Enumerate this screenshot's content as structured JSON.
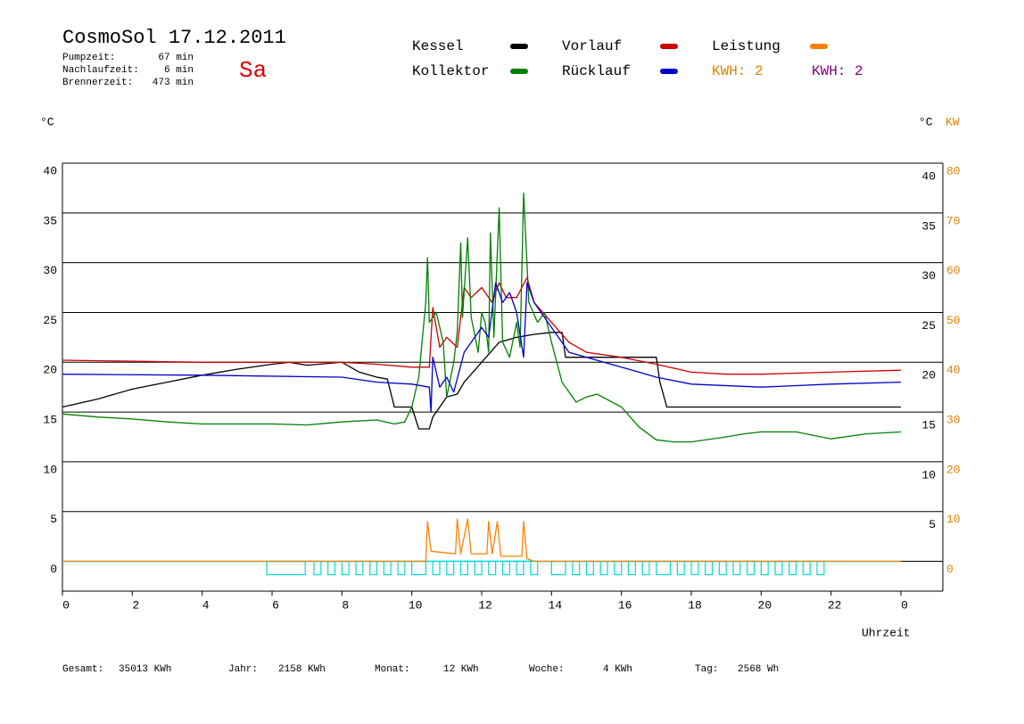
{
  "chart_data": {
    "type": "line",
    "title": "CosmoSol 17.12.2011",
    "day": "Sa",
    "info": [
      {
        "label": "Pumpzeit:",
        "value": "67 min"
      },
      {
        "label": "Nachlaufzeit:",
        "value": "6 min"
      },
      {
        "label": "Brennerzeit:",
        "value": "473 min"
      }
    ],
    "y_label": "°C",
    "y2_label_c": "°C",
    "y2_label": "KW",
    "x_label": "Uhrzeit",
    "xlim": [
      0,
      25.2
    ],
    "xticks": [
      0,
      2,
      4,
      6,
      8,
      10,
      12,
      14,
      16,
      18,
      20,
      22,
      {
        "value": 24,
        "label": "0"
      }
    ],
    "ylim": [
      -3,
      40
    ],
    "yticks": [
      0,
      5,
      10,
      15,
      20,
      25,
      30,
      35,
      40
    ],
    "y2lim": [
      -6,
      80
    ],
    "y2ticks": [
      0,
      10,
      20,
      30,
      40,
      50,
      60,
      70,
      80
    ],
    "grid": true,
    "series": [
      {
        "name": "Kessel",
        "color": "#000000",
        "x": [
          0,
          1,
          2,
          3,
          4,
          5,
          6,
          6.5,
          7,
          8,
          8.5,
          9,
          9.3,
          9.5,
          10,
          10.2,
          10.5,
          10.6,
          11,
          11.3,
          11.5,
          12,
          12.5,
          13,
          13.5,
          14,
          14.3,
          14.4,
          15,
          16,
          17,
          17.1,
          17.3,
          18,
          24
        ],
        "values": [
          15.5,
          16.3,
          17.3,
          18.0,
          18.7,
          19.3,
          19.8,
          20.0,
          19.7,
          20.0,
          19.0,
          18.5,
          18.3,
          15.5,
          15.5,
          13.3,
          13.3,
          14.5,
          16.5,
          16.8,
          18.0,
          20.0,
          22.0,
          22.5,
          22.8,
          23.0,
          23.0,
          20.5,
          20.5,
          20.5,
          20.5,
          18.0,
          15.5,
          15.5,
          15.5
        ]
      },
      {
        "name": "Vorlauf",
        "color": "#cc0000",
        "x": [
          0,
          4,
          8,
          9,
          10,
          10.5,
          10.6,
          10.8,
          11,
          11.3,
          11.5,
          11.7,
          12,
          12.3,
          12.5,
          12.7,
          13,
          13.3,
          13.5,
          14,
          14.5,
          15,
          16,
          17,
          18,
          19,
          20,
          22,
          24
        ],
        "values": [
          20.2,
          20.0,
          20.0,
          19.8,
          19.5,
          19.5,
          25.5,
          21.5,
          22.5,
          21.5,
          27.5,
          26.5,
          27.5,
          26.0,
          28.0,
          26.5,
          26.5,
          28.5,
          26.0,
          24.0,
          22.0,
          21.0,
          20.5,
          19.8,
          19.0,
          18.8,
          18.8,
          19.0,
          19.2
        ]
      },
      {
        "name": "Leistung",
        "color": "#ff8000",
        "axis": "y2",
        "x": [
          0,
          10.4,
          10.45,
          10.55,
          11.25,
          11.3,
          11.4,
          11.6,
          11.7,
          12.15,
          12.2,
          12.3,
          12.45,
          12.55,
          13.15,
          13.2,
          13.3,
          13.5,
          24
        ],
        "values": [
          0,
          0,
          8,
          2,
          1.5,
          8.5,
          1.5,
          8.5,
          1.5,
          1.5,
          8,
          1.5,
          8,
          1,
          1,
          8,
          0.5,
          0,
          0
        ]
      },
      {
        "name": "Kollektor",
        "color": "#008000",
        "x": [
          0,
          1,
          2,
          3,
          4,
          5,
          6,
          7,
          8,
          9,
          9.5,
          9.8,
          10,
          10.2,
          10.4,
          10.45,
          10.5,
          10.7,
          10.9,
          11,
          11.2,
          11.3,
          11.4,
          11.45,
          11.6,
          11.7,
          11.9,
          12,
          12.1,
          12.2,
          12.25,
          12.35,
          12.5,
          12.6,
          12.8,
          13,
          13.1,
          13.2,
          13.35,
          13.6,
          13.8,
          14,
          14.3,
          14.7,
          15,
          15.3,
          16,
          16.5,
          17,
          17.5,
          18,
          19,
          19.5,
          20,
          21,
          22,
          23,
          24
        ],
        "values": [
          14.8,
          14.5,
          14.3,
          14.0,
          13.8,
          13.8,
          13.8,
          13.7,
          14.0,
          14.2,
          13.8,
          14.0,
          15.5,
          18.5,
          26,
          30.5,
          24,
          25,
          22,
          16.5,
          20,
          23,
          32,
          24.5,
          32.5,
          24.5,
          21,
          25,
          24,
          21,
          33,
          22.5,
          35.5,
          22,
          20.5,
          24,
          21.5,
          37,
          26,
          24,
          25,
          22,
          18,
          16,
          16.5,
          16.8,
          15.5,
          13.5,
          12.2,
          12.0,
          12.0,
          12.5,
          12.8,
          13.0,
          13.0,
          12.3,
          12.8,
          13.0
        ]
      },
      {
        "name": "Rücklauf",
        "color": "#0000cc",
        "x": [
          0,
          4,
          8,
          9,
          10,
          10.5,
          10.55,
          10.6,
          10.8,
          11,
          11.2,
          11.5,
          12,
          12.2,
          12.4,
          12.6,
          12.8,
          13,
          13.2,
          13.3,
          13.5,
          14,
          14.5,
          15,
          16,
          17,
          18,
          20,
          22,
          24
        ],
        "values": [
          18.8,
          18.7,
          18.5,
          18.0,
          17.8,
          17.5,
          15,
          20.5,
          17.5,
          18.5,
          17.0,
          21.0,
          23.5,
          22.5,
          28,
          26,
          27,
          25,
          20.5,
          28,
          26,
          23.5,
          21,
          20.5,
          19.5,
          18.5,
          17.8,
          17.5,
          17.8,
          18.0
        ]
      }
    ],
    "kwh_labels": [
      {
        "text": "KWH: 2",
        "color": "#e08000"
      },
      {
        "text": "KWH: 2",
        "color": "#800080"
      }
    ],
    "pump_color": "#00d8d8",
    "pump": [
      [
        5.85,
        6.95
      ],
      [
        7.2,
        7.4
      ],
      [
        7.6,
        7.8
      ],
      [
        8.0,
        8.2
      ],
      [
        8.4,
        8.6
      ],
      [
        8.8,
        9.0
      ],
      [
        9.2,
        9.4
      ],
      [
        9.6,
        9.8
      ],
      [
        10.0,
        10.4
      ],
      [
        10.6,
        10.8
      ],
      [
        11.0,
        11.2
      ],
      [
        11.4,
        11.6
      ],
      [
        11.8,
        12.0
      ],
      [
        12.2,
        12.4
      ],
      [
        12.6,
        12.8
      ],
      [
        13.0,
        13.2
      ],
      [
        13.4,
        13.6
      ],
      [
        14.0,
        14.4
      ],
      [
        14.6,
        14.8
      ],
      [
        15.0,
        15.2
      ],
      [
        15.4,
        15.6
      ],
      [
        15.8,
        16.0
      ],
      [
        16.2,
        16.4
      ],
      [
        16.6,
        16.8
      ],
      [
        17.0,
        17.4
      ],
      [
        17.6,
        17.8
      ],
      [
        18.0,
        18.2
      ],
      [
        18.4,
        18.6
      ],
      [
        18.8,
        19.0
      ],
      [
        19.2,
        19.4
      ],
      [
        19.6,
        19.8
      ],
      [
        20.0,
        20.2
      ],
      [
        20.4,
        20.6
      ],
      [
        20.8,
        21.0
      ],
      [
        21.2,
        21.4
      ],
      [
        21.6,
        21.8
      ]
    ],
    "footer": [
      {
        "label": "Gesamt:",
        "value": "35013 KWh"
      },
      {
        "label": "Jahr:",
        "value": "2158 KWh"
      },
      {
        "label": "Monat:",
        "value": "12 KWh"
      },
      {
        "label": "Woche:",
        "value": "4 KWh"
      },
      {
        "label": "Tag:",
        "value": "2568 Wh"
      }
    ]
  }
}
